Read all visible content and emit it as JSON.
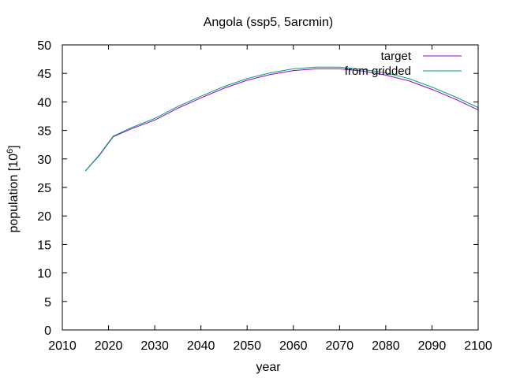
{
  "chart_data": {
    "type": "line",
    "title": "Angola (ssp5, 5arcmin)",
    "xlabel": "year",
    "ylabel": "population [10",
    "ylabel_exponent": "6",
    "ylabel_suffix": "]",
    "xlim": [
      2010,
      2100
    ],
    "ylim": [
      0,
      50
    ],
    "xticks": [
      2010,
      2020,
      2030,
      2040,
      2050,
      2060,
      2070,
      2080,
      2090,
      2100
    ],
    "yticks": [
      0,
      5,
      10,
      15,
      20,
      25,
      30,
      35,
      40,
      45,
      50
    ],
    "grid": false,
    "legend_position": "top-right",
    "series": [
      {
        "name": "target",
        "color": "#9400d3",
        "x": [
          2015,
          2018,
          2021,
          2025,
          2030,
          2035,
          2040,
          2045,
          2050,
          2055,
          2060,
          2065,
          2070,
          2075,
          2080,
          2085,
          2090,
          2095,
          2100
        ],
        "y": [
          27.9,
          30.6,
          33.9,
          35.3,
          36.8,
          38.9,
          40.7,
          42.4,
          43.8,
          44.8,
          45.5,
          45.8,
          45.8,
          45.4,
          44.7,
          43.7,
          42.2,
          40.5,
          38.6
        ]
      },
      {
        "name": "from gridded",
        "color": "#009e73",
        "x": [
          2015,
          2018,
          2021,
          2025,
          2030,
          2035,
          2040,
          2045,
          2050,
          2055,
          2060,
          2065,
          2070,
          2075,
          2080,
          2085,
          2090,
          2095,
          2100
        ],
        "y": [
          27.9,
          30.7,
          34.0,
          35.5,
          37.1,
          39.2,
          41.0,
          42.7,
          44.1,
          45.1,
          45.8,
          46.1,
          46.1,
          45.7,
          45.1,
          44.1,
          42.6,
          40.9,
          39.0
        ]
      }
    ]
  }
}
